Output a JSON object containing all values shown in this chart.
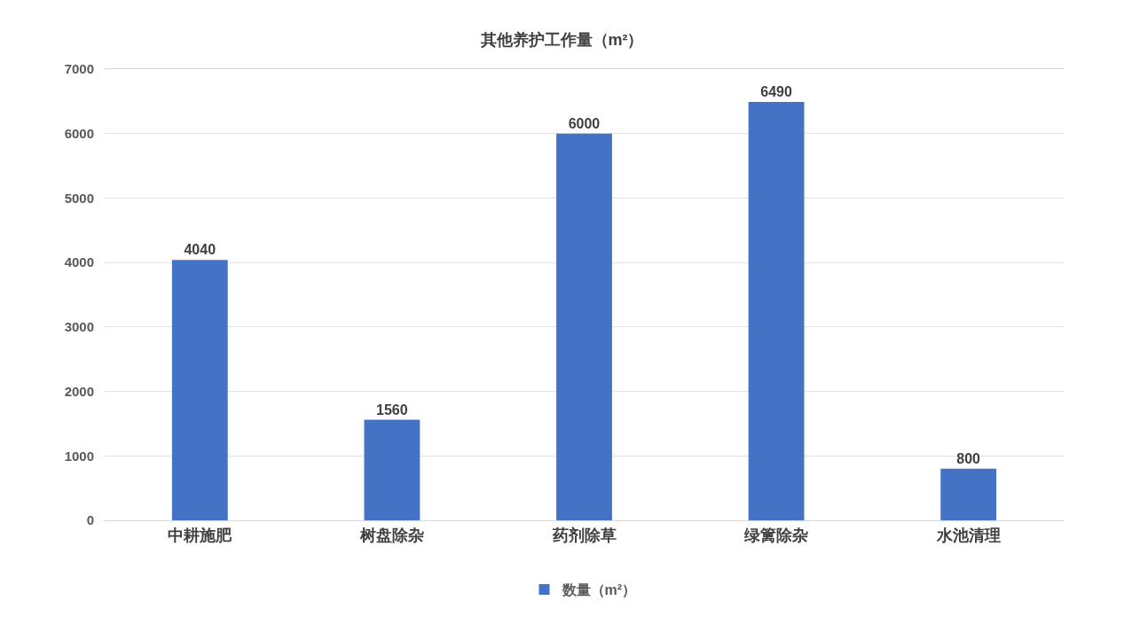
{
  "chart_data": {
    "type": "bar",
    "title": "其他养护工作量（m²）",
    "categories": [
      "中耕施肥",
      "树盘除杂",
      "药剂除草",
      "绿篱除杂",
      "水池清理"
    ],
    "series": [
      {
        "name": "数量（m²）",
        "color": "#4472c4",
        "values": [
          4040,
          1560,
          6000,
          6490,
          800
        ]
      }
    ],
    "ylim": [
      0,
      7000
    ],
    "yticks": [
      0,
      1000,
      2000,
      3000,
      4000,
      5000,
      6000,
      7000
    ],
    "grid": "y",
    "legend": "bottom",
    "data_labels": true
  }
}
